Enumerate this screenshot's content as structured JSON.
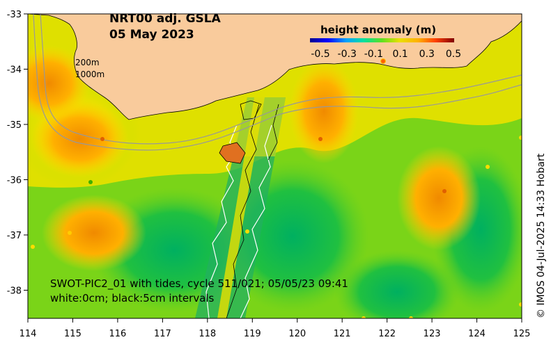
{
  "map": {
    "title_line1": "NRT00 adj. GSLA",
    "title_line2": "05 May 2023",
    "swot_line1": "SWOT-PIC2_01 with tides, cycle 511/021; 05/05/23 09:41",
    "swot_line2": "white:0cm; black:5cm intervals",
    "contour_label_200": "200m",
    "contour_label_1000": "1000m",
    "credit": "© IMOS 04-Jul-2025 14:33 Hobart",
    "colorbar": {
      "title": "height anomaly (m)",
      "tick_labels": [
        "-0.5",
        "-0.3",
        "-0.1",
        "0.1",
        "0.3",
        "0.5"
      ]
    },
    "x_ticks": [
      "114",
      "115",
      "116",
      "117",
      "118",
      "119",
      "120",
      "121",
      "122",
      "123",
      "124",
      "125"
    ],
    "y_ticks": [
      "-33",
      "-34",
      "-35",
      "-36",
      "-37",
      "-38"
    ],
    "colors": {
      "land": "#f9cb9c",
      "high": "#ff9900",
      "mid": "#ffcc00",
      "low": "#00cc44",
      "deep": "#00a060"
    }
  }
}
